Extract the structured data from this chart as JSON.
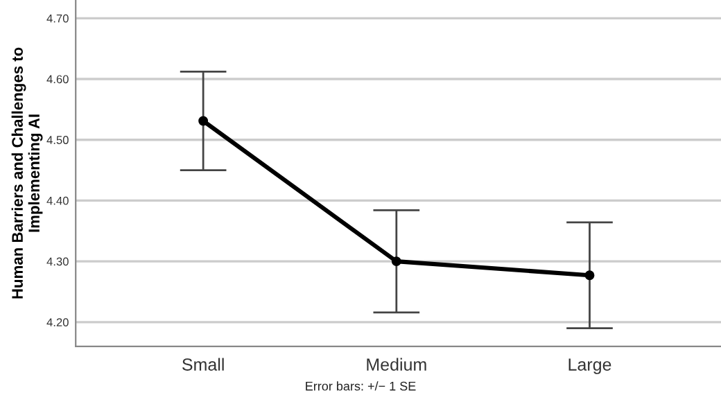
{
  "chart_data": {
    "type": "line",
    "ylabel": "Human Barriers and Challenges to Implementing AI",
    "categories": [
      "Small",
      "Medium",
      "Large"
    ],
    "series": [
      {
        "color": "#000000",
        "values": [
          4.531,
          4.3,
          4.277
        ],
        "errors": [
          0.081,
          0.084,
          0.087
        ]
      }
    ],
    "marker": "circle",
    "line_style": "solid",
    "ylim": [
      4.16,
      4.73
    ],
    "yticks": [
      {
        "value": 4.2,
        "label": "4.20"
      },
      {
        "value": 4.3,
        "label": "4.30"
      },
      {
        "value": 4.4,
        "label": "4.40"
      },
      {
        "value": 4.5,
        "label": "4.50"
      },
      {
        "value": 4.6,
        "label": "4.60"
      },
      {
        "value": 4.7,
        "label": "4.70"
      }
    ],
    "grid": "y",
    "annotations": [
      "Error bars: +/− 1 SE"
    ]
  }
}
